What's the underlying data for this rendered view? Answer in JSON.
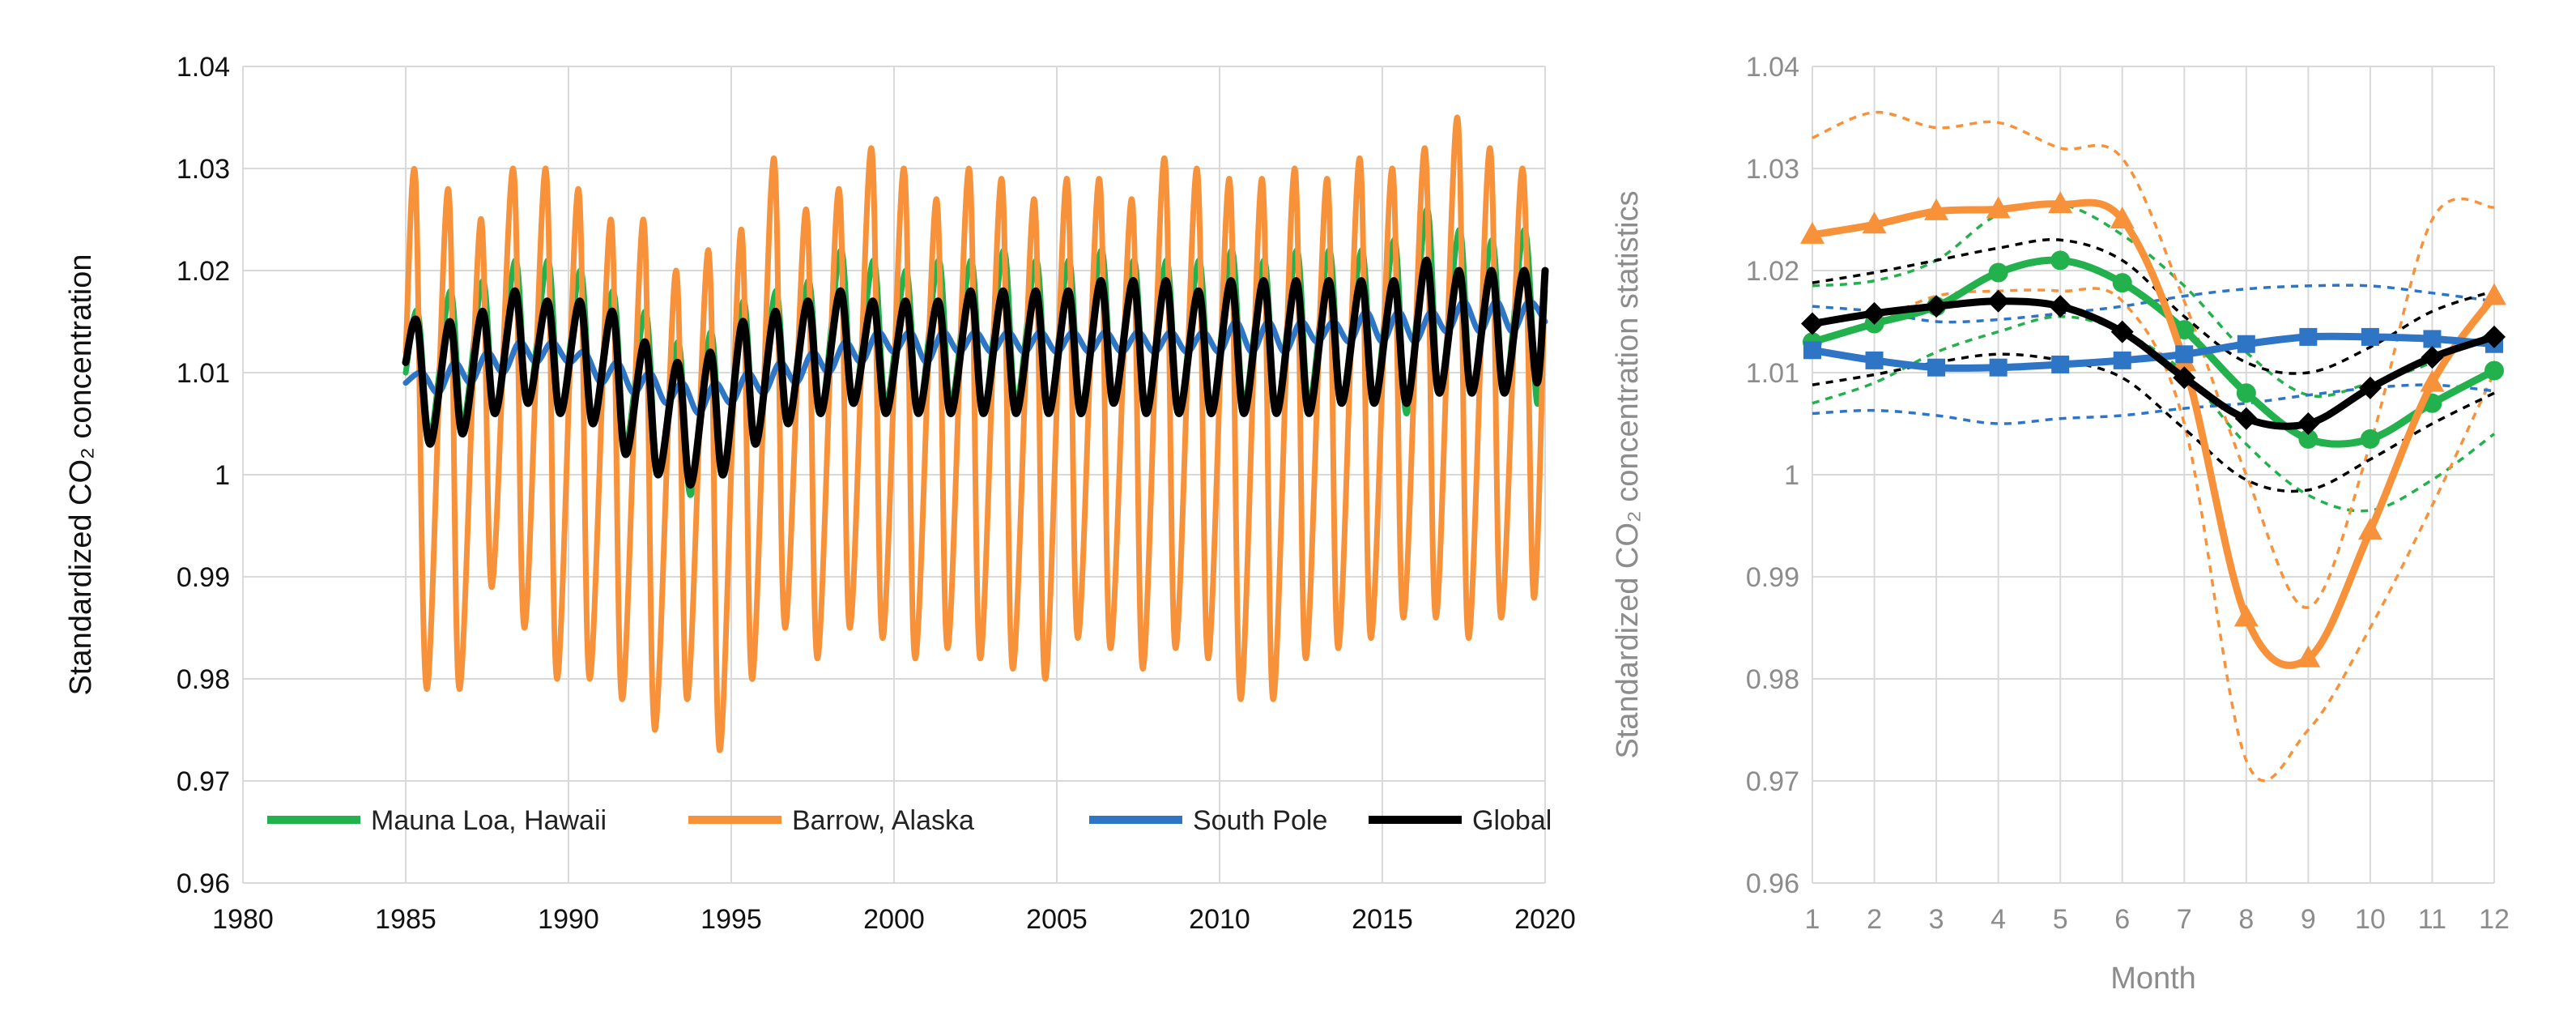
{
  "chart_data": [
    {
      "type": "line",
      "ylabel": "Standardized  CO₂ concentration",
      "xlabel": "",
      "xlim": [
        1980,
        2020
      ],
      "ylim": [
        0.96,
        1.04
      ],
      "x_ticks": [
        "1980",
        "1985",
        "1990",
        "1995",
        "2000",
        "2005",
        "2010",
        "2015",
        "2020"
      ],
      "y_ticks": [
        "0.96",
        "0.97",
        "0.98",
        "0.99",
        "1",
        "1.01",
        "1.02",
        "1.03",
        "1.04"
      ],
      "grid": "both",
      "legend_position": "bottom",
      "series": [
        {
          "name": "Mauna Loa, Hawaii",
          "color": "#22b14c",
          "x": [
            1985.0,
            1985.37,
            1985.75,
            1986.37,
            1986.75,
            1987.37,
            1987.75,
            1988.37,
            1988.75,
            1989.37,
            1989.75,
            1990.37,
            1990.75,
            1991.37,
            1991.75,
            1992.37,
            1992.75,
            1993.37,
            1993.75,
            1994.37,
            1994.75,
            1995.37,
            1995.75,
            1996.37,
            1996.75,
            1997.37,
            1997.75,
            1998.37,
            1998.75,
            1999.37,
            1999.75,
            2000.37,
            2000.75,
            2001.37,
            2001.75,
            2002.37,
            2002.75,
            2003.37,
            2003.75,
            2004.37,
            2004.75,
            2005.37,
            2005.75,
            2006.37,
            2006.75,
            2007.37,
            2007.75,
            2008.37,
            2008.75,
            2009.37,
            2009.75,
            2010.37,
            2010.75,
            2011.37,
            2011.75,
            2012.37,
            2012.75,
            2013.37,
            2013.75,
            2014.37,
            2014.75,
            2015.37,
            2015.75,
            2016.37,
            2016.75,
            2017.37,
            2017.75,
            2018.37,
            2018.75,
            2019.37,
            2019.75,
            2020.0
          ],
          "y": [
            1.01,
            1.016,
            1.004,
            1.018,
            1.005,
            1.019,
            1.006,
            1.021,
            1.007,
            1.021,
            1.006,
            1.02,
            1.005,
            1.018,
            1.003,
            1.016,
            1.0,
            1.013,
            0.998,
            1.014,
            1.0,
            1.017,
            1.003,
            1.018,
            1.005,
            1.019,
            1.006,
            1.022,
            1.007,
            1.021,
            1.007,
            1.02,
            1.006,
            1.021,
            1.007,
            1.021,
            1.006,
            1.022,
            1.007,
            1.021,
            1.006,
            1.021,
            1.006,
            1.022,
            1.007,
            1.021,
            1.006,
            1.021,
            1.006,
            1.021,
            1.006,
            1.022,
            1.007,
            1.021,
            1.006,
            1.022,
            1.007,
            1.022,
            1.007,
            1.022,
            1.007,
            1.023,
            1.006,
            1.026,
            1.008,
            1.024,
            1.008,
            1.023,
            1.008,
            1.024,
            1.007,
            1.018
          ]
        },
        {
          "name": "Barrow, Alaska",
          "color": "#f7923a",
          "x": [
            1985.0,
            1985.3,
            1985.65,
            1986.3,
            1986.65,
            1987.3,
            1987.65,
            1988.3,
            1988.65,
            1989.3,
            1989.65,
            1990.3,
            1990.65,
            1991.3,
            1991.65,
            1992.3,
            1992.65,
            1993.3,
            1993.65,
            1994.3,
            1994.65,
            1995.3,
            1995.65,
            1996.3,
            1996.65,
            1997.3,
            1997.65,
            1998.3,
            1998.65,
            1999.3,
            1999.65,
            2000.3,
            2000.65,
            2001.3,
            2001.65,
            2002.3,
            2002.65,
            2003.3,
            2003.65,
            2004.3,
            2004.65,
            2005.3,
            2005.65,
            2006.3,
            2006.65,
            2007.3,
            2007.65,
            2008.3,
            2008.65,
            2009.3,
            2009.65,
            2010.3,
            2010.65,
            2011.3,
            2011.65,
            2012.3,
            2012.65,
            2013.3,
            2013.65,
            2014.3,
            2014.65,
            2015.3,
            2015.65,
            2016.3,
            2016.65,
            2017.3,
            2017.65,
            2018.3,
            2018.65,
            2019.3,
            2019.65,
            2020.0
          ],
          "y": [
            1.012,
            1.029,
            0.979,
            1.028,
            0.979,
            1.025,
            0.989,
            1.03,
            0.985,
            1.03,
            0.98,
            1.028,
            0.98,
            1.025,
            0.978,
            1.025,
            0.975,
            1.02,
            0.978,
            1.022,
            0.973,
            1.024,
            0.98,
            1.031,
            0.985,
            1.026,
            0.982,
            1.028,
            0.985,
            1.032,
            0.984,
            1.03,
            0.982,
            1.027,
            0.983,
            1.03,
            0.982,
            1.029,
            0.981,
            1.027,
            0.98,
            1.029,
            0.984,
            1.029,
            0.983,
            1.027,
            0.981,
            1.031,
            0.983,
            1.03,
            0.982,
            1.029,
            0.978,
            1.029,
            0.978,
            1.03,
            0.982,
            1.029,
            0.983,
            1.031,
            0.984,
            1.03,
            0.986,
            1.032,
            0.986,
            1.035,
            0.984,
            1.032,
            0.986,
            1.03,
            0.988,
            1.02
          ]
        },
        {
          "name": "South Pole",
          "color": "#2e75c5",
          "x": [
            1985.0,
            1985.5,
            1986.0,
            1986.5,
            1987.0,
            1987.5,
            1988.0,
            1988.5,
            1989.0,
            1989.5,
            1990.0,
            1990.5,
            1991.0,
            1991.5,
            1992.0,
            1992.5,
            1993.0,
            1993.5,
            1994.0,
            1994.5,
            1995.0,
            1995.5,
            1996.0,
            1996.5,
            1997.0,
            1997.5,
            1998.0,
            1998.5,
            1999.0,
            1999.5,
            2000.0,
            2000.5,
            2001.0,
            2001.5,
            2002.0,
            2002.5,
            2003.0,
            2003.5,
            2004.0,
            2004.5,
            2005.0,
            2005.5,
            2006.0,
            2006.5,
            2007.0,
            2007.5,
            2008.0,
            2008.5,
            2009.0,
            2009.5,
            2010.0,
            2010.5,
            2011.0,
            2011.5,
            2012.0,
            2012.5,
            2013.0,
            2013.5,
            2014.0,
            2014.5,
            2015.0,
            2015.5,
            2016.0,
            2016.5,
            2017.0,
            2017.5,
            2018.0,
            2018.5,
            2019.0,
            2019.5,
            2020.0
          ],
          "y": [
            1.009,
            1.01,
            1.008,
            1.011,
            1.009,
            1.012,
            1.01,
            1.013,
            1.011,
            1.013,
            1.011,
            1.012,
            1.009,
            1.011,
            1.008,
            1.01,
            1.007,
            1.009,
            1.006,
            1.009,
            1.007,
            1.01,
            1.008,
            1.011,
            1.009,
            1.012,
            1.01,
            1.013,
            1.011,
            1.014,
            1.012,
            1.014,
            1.011,
            1.014,
            1.012,
            1.014,
            1.012,
            1.014,
            1.012,
            1.014,
            1.012,
            1.014,
            1.012,
            1.014,
            1.012,
            1.014,
            1.012,
            1.014,
            1.012,
            1.014,
            1.012,
            1.015,
            1.012,
            1.015,
            1.012,
            1.015,
            1.013,
            1.015,
            1.013,
            1.016,
            1.013,
            1.016,
            1.013,
            1.016,
            1.014,
            1.017,
            1.014,
            1.017,
            1.014,
            1.017,
            1.015
          ]
        },
        {
          "name": "Global",
          "color": "#000000",
          "x": [
            1985.0,
            1985.35,
            1985.75,
            1986.35,
            1986.75,
            1987.35,
            1987.75,
            1988.35,
            1988.75,
            1989.35,
            1989.75,
            1990.35,
            1990.75,
            1991.35,
            1991.75,
            1992.35,
            1992.75,
            1993.35,
            1993.75,
            1994.35,
            1994.75,
            1995.35,
            1995.75,
            1996.35,
            1996.75,
            1997.35,
            1997.75,
            1998.35,
            1998.75,
            1999.35,
            1999.75,
            2000.35,
            2000.75,
            2001.35,
            2001.75,
            2002.35,
            2002.75,
            2003.35,
            2003.75,
            2004.35,
            2004.75,
            2005.35,
            2005.75,
            2006.35,
            2006.75,
            2007.35,
            2007.75,
            2008.35,
            2008.75,
            2009.35,
            2009.75,
            2010.35,
            2010.75,
            2011.35,
            2011.75,
            2012.35,
            2012.75,
            2013.35,
            2013.75,
            2014.35,
            2014.75,
            2015.35,
            2015.75,
            2016.35,
            2016.75,
            2017.35,
            2017.75,
            2018.35,
            2018.75,
            2019.35,
            2019.75,
            2020.0
          ],
          "y": [
            1.011,
            1.015,
            1.003,
            1.015,
            1.004,
            1.016,
            1.006,
            1.018,
            1.007,
            1.017,
            1.006,
            1.017,
            1.005,
            1.016,
            1.002,
            1.013,
            1.0,
            1.011,
            0.999,
            1.012,
            1.0,
            1.015,
            1.003,
            1.016,
            1.005,
            1.017,
            1.006,
            1.018,
            1.007,
            1.017,
            1.006,
            1.017,
            1.006,
            1.017,
            1.006,
            1.018,
            1.006,
            1.018,
            1.006,
            1.018,
            1.006,
            1.018,
            1.006,
            1.019,
            1.007,
            1.019,
            1.006,
            1.019,
            1.006,
            1.018,
            1.006,
            1.019,
            1.006,
            1.019,
            1.006,
            1.019,
            1.006,
            1.019,
            1.007,
            1.019,
            1.007,
            1.019,
            1.007,
            1.021,
            1.008,
            1.02,
            1.008,
            1.02,
            1.008,
            1.02,
            1.009,
            1.02
          ]
        }
      ]
    },
    {
      "type": "line",
      "ylabel": "Standardized  CO₂ concentration statistics",
      "xlabel": "Month",
      "categories": [
        "1",
        "2",
        "3",
        "4",
        "5",
        "6",
        "7",
        "8",
        "9",
        "10",
        "11",
        "12"
      ],
      "ylim": [
        0.96,
        1.04
      ],
      "y_ticks": [
        "0.96",
        "0.97",
        "0.98",
        "0.99",
        "1",
        "1.01",
        "1.02",
        "1.03",
        "1.04"
      ],
      "grid": "both",
      "series": [
        {
          "id": "mlo-mean",
          "color": "#22b14c",
          "marker": "circle",
          "style": "solid",
          "values": [
            1.013,
            1.0148,
            1.0165,
            1.0198,
            1.021,
            1.0188,
            1.0142,
            1.008,
            1.0035,
            1.0035,
            1.007,
            1.0102
          ]
        },
        {
          "id": "mlo-upper",
          "color": "#22b14c",
          "style": "dashed",
          "values": [
            1.0185,
            1.019,
            1.021,
            1.0255,
            1.0265,
            1.0235,
            1.0185,
            1.012,
            1.0078,
            1.009,
            1.011,
            1.014
          ]
        },
        {
          "id": "mlo-lower",
          "color": "#22b14c",
          "style": "dashed",
          "values": [
            1.007,
            1.009,
            1.012,
            1.014,
            1.0155,
            1.014,
            1.01,
            1.003,
            0.998,
            0.9965,
            0.9995,
            1.004
          ]
        },
        {
          "id": "brw-mean",
          "color": "#f7923a",
          "marker": "triangle",
          "style": "solid",
          "values": [
            1.0235,
            1.0245,
            1.0258,
            1.026,
            1.0265,
            1.025,
            1.011,
            0.986,
            0.982,
            0.9945,
            1.009,
            1.0175
          ]
        },
        {
          "id": "brw-upper",
          "color": "#f7923a",
          "style": "dashed",
          "values": [
            1.033,
            1.0355,
            1.034,
            1.0345,
            1.032,
            1.031,
            1.017,
            1.0,
            0.987,
            1.003,
            1.025,
            1.0262
          ]
        },
        {
          "id": "brw-lower",
          "color": "#f7923a",
          "style": "dashed",
          "values": [
            1.013,
            1.015,
            1.0175,
            1.018,
            1.018,
            1.017,
            1.005,
            0.972,
            0.975,
            0.985,
            0.997,
            1.01
          ]
        },
        {
          "id": "spo-mean",
          "color": "#2e75c5",
          "marker": "square",
          "style": "solid",
          "values": [
            1.0122,
            1.0112,
            1.0105,
            1.0105,
            1.0108,
            1.0112,
            1.0118,
            1.0128,
            1.0135,
            1.0135,
            1.0133,
            1.0128
          ]
        },
        {
          "id": "spo-upper",
          "color": "#2e75c5",
          "style": "dashed",
          "values": [
            1.0165,
            1.016,
            1.015,
            1.0152,
            1.0158,
            1.0165,
            1.0175,
            1.0182,
            1.0185,
            1.0185,
            1.0178,
            1.017
          ]
        },
        {
          "id": "spo-lower",
          "color": "#2e75c5",
          "style": "dashed",
          "values": [
            1.006,
            1.0063,
            1.0058,
            1.005,
            1.0055,
            1.0058,
            1.0065,
            1.007,
            1.0078,
            1.0085,
            1.0088,
            1.0082
          ]
        },
        {
          "id": "glb-mean",
          "color": "#000000",
          "marker": "diamond",
          "style": "solid",
          "values": [
            1.0148,
            1.0158,
            1.0165,
            1.017,
            1.0165,
            1.014,
            1.0095,
            1.0055,
            1.005,
            1.0085,
            1.0115,
            1.0135
          ]
        },
        {
          "id": "glb-upper",
          "color": "#000000",
          "style": "dashed",
          "values": [
            1.0188,
            1.0198,
            1.021,
            1.0222,
            1.023,
            1.021,
            1.0155,
            1.011,
            1.01,
            1.0125,
            1.016,
            1.018
          ]
        },
        {
          "id": "glb-lower",
          "color": "#000000",
          "style": "dashed",
          "values": [
            1.0088,
            1.0098,
            1.011,
            1.0118,
            1.0112,
            1.0095,
            1.0045,
            0.9995,
            0.9985,
            1.0015,
            1.005,
            1.008
          ]
        }
      ]
    }
  ]
}
